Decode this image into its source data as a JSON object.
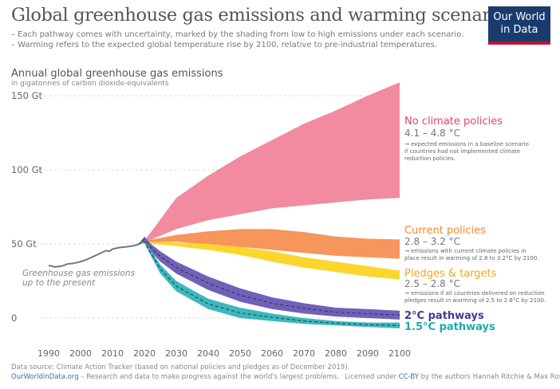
{
  "header": {
    "title": "Global greenhouse gas emissions and warming scenarios",
    "subtitle_1": "– Each pathway comes with uncertainty, marked by the shading from low to high emissions under each scenario.",
    "subtitle_2": "– Warming refers to the expected global temperature rise by 2100, relative to pre-industrial temperatures."
  },
  "logo": {
    "line1": "Our World",
    "line2": "in Data"
  },
  "footer": {
    "source": "Data source: Climate Action Tracker (based on national policies and pledges as of December 2019).",
    "site": "OurWorldinData.org",
    "site_tagline": " – Research and data to make progress against the world's largest problems.",
    "license_prefix": "Licensed under ",
    "license": "CC-BY",
    "license_suffix": " by the authors Hannah Ritchie & Max Roser."
  },
  "chart_data": {
    "type": "area",
    "title": "Annual global greenhouse gas emissions",
    "ylabel_sub": "in gigatonnes of carbon dioxide-equivalents",
    "xlim": [
      1990,
      2100
    ],
    "ylim": [
      0,
      160
    ],
    "x_ticks": [
      "1990",
      "2000",
      "2010",
      "2020",
      "2030",
      "2040",
      "2050",
      "2060",
      "2070",
      "2080",
      "2090",
      "2100"
    ],
    "y_ticks": [
      {
        "value": 0,
        "label": "0"
      },
      {
        "value": 50,
        "label": "50 Gt"
      },
      {
        "value": 100,
        "label": "100 Gt"
      },
      {
        "value": 150,
        "label": "150 Gt"
      }
    ],
    "history": {
      "label_line1": "Greenhouse gas emissions",
      "label_line2": "up to the present",
      "color": "#777777",
      "x": [
        1990,
        1992,
        1994,
        1996,
        1998,
        2000,
        2002,
        2004,
        2006,
        2008,
        2009,
        2010,
        2012,
        2014,
        2016,
        2018
      ],
      "y": [
        35.5,
        34.5,
        35,
        36.5,
        37,
        38,
        39.5,
        41.5,
        43.5,
        45.5,
        45,
        46.5,
        47.5,
        48,
        48.5,
        49.5
      ]
    },
    "series": [
      {
        "name": "No climate policies",
        "temp": "4.1 – 4.8 °C",
        "note": [
          "→ expected emissions in a baseline scenario",
          "if countries had not implemented climate",
          "reduction policies."
        ],
        "color": "#f28aa0",
        "label_color": "#e0456b",
        "x": [
          2018,
          2020,
          2030,
          2040,
          2050,
          2060,
          2070,
          2080,
          2090,
          2100
        ],
        "low": [
          49.5,
          51,
          60,
          66,
          70,
          74,
          76,
          78,
          80,
          81
        ],
        "high": [
          49.5,
          52,
          81,
          96,
          109,
          120,
          131,
          140,
          150,
          159
        ]
      },
      {
        "name": "Current policies",
        "temp": "2.8 – 3.2 °C",
        "note": [
          "→ emissions with current climate policies in",
          "place result in warming of 2.8 to 3.2°C by 2100."
        ],
        "color": "#f6955c",
        "label_color": "#ee8a2c",
        "x": [
          2018,
          2020,
          2030,
          2040,
          2050,
          2060,
          2070,
          2080,
          2090,
          2100
        ],
        "low": [
          49.5,
          51,
          51.5,
          49.5,
          48,
          46,
          44,
          42,
          41,
          40
        ],
        "high": [
          49.5,
          52,
          56,
          58.5,
          60,
          60,
          58,
          55,
          53.5,
          53
        ]
      },
      {
        "name": "Pledges & targets",
        "temp": "2.5 – 2.8 °C",
        "note": [
          "→ emissions if all countries delivered on reduction",
          "pledges result in warming of 2.5 to 2.8°C by 2100."
        ],
        "color": "#fcd62d",
        "label_color": "#f0a81e",
        "x": [
          2018,
          2020,
          2030,
          2040,
          2050,
          2060,
          2070,
          2080,
          2090,
          2100
        ],
        "low": [
          49.5,
          50.5,
          48.5,
          46,
          42.5,
          38,
          34,
          31,
          28,
          26
        ],
        "high": [
          49.5,
          51.5,
          51,
          50,
          48,
          45,
          41,
          38,
          35,
          32
        ]
      },
      {
        "name": "2°C pathways",
        "color": "#7060ba",
        "label_color": "#3e3a96",
        "x": [
          2018,
          2020,
          2022,
          2025,
          2030,
          2040,
          2050,
          2060,
          2070,
          2080,
          2090,
          2100
        ],
        "low": [
          49.5,
          51,
          45,
          38,
          30,
          19,
          11,
          6,
          3,
          1,
          0,
          -1
        ],
        "high": [
          49.5,
          55,
          50,
          45,
          38,
          28,
          20,
          14,
          10,
          7,
          6,
          5
        ],
        "mid": [
          49.5,
          53,
          47.5,
          41.5,
          34,
          23.5,
          15.5,
          10,
          6.5,
          4,
          3,
          2
        ]
      },
      {
        "name": "1.5°C pathways",
        "color": "#3bb8bf",
        "label_color": "#1ea8b3",
        "x": [
          2018,
          2020,
          2022,
          2025,
          2030,
          2040,
          2050,
          2060,
          2070,
          2080,
          2090,
          2100
        ],
        "low": [
          49.5,
          50.5,
          42,
          30,
          18,
          6,
          0,
          -2,
          -4,
          -5,
          -6,
          -7
        ],
        "high": [
          49.5,
          52.5,
          46,
          36,
          25,
          13,
          7,
          3,
          0,
          -2,
          -3,
          -3
        ],
        "mid": [
          49.5,
          51.5,
          44,
          33,
          21.5,
          9.5,
          3.5,
          0.5,
          -2,
          -3.5,
          -4.5,
          -5
        ]
      }
    ]
  }
}
